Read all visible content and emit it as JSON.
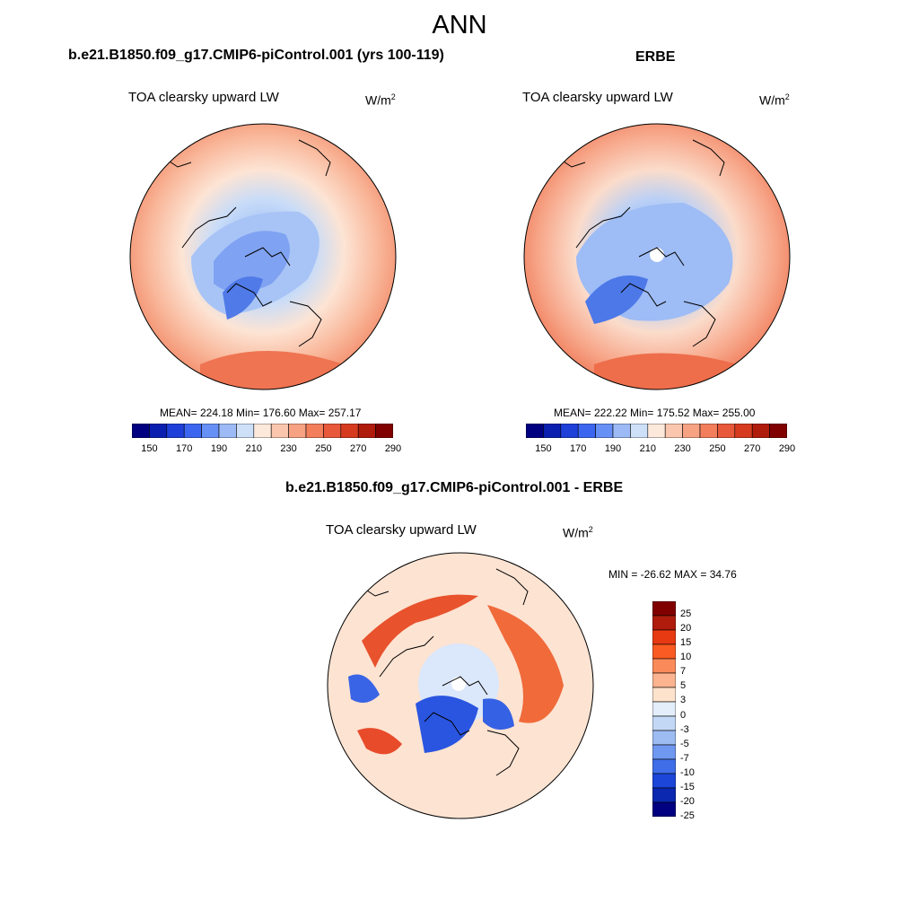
{
  "figure": {
    "title": "ANN",
    "panels": [
      {
        "title": "b.e21.B1850.f09_g17.CMIP6-piControl.001 (yrs 100-119)",
        "left_string": "TOA clearsky upward LW",
        "units": "W/m",
        "units_sup": "2",
        "stats": "MEAN= 224.18  Min= 176.60  Max= 257.17"
      },
      {
        "title": "ERBE",
        "left_string": "TOA clearsky upward LW",
        "units": "W/m",
        "units_sup": "2",
        "stats": "MEAN= 222.22  Min= 175.52  Max= 255.00"
      },
      {
        "title": "b.e21.B1850.f09_g17.CMIP6-piControl.001 - ERBE",
        "left_string": "TOA clearsky upward LW",
        "units": "W/m",
        "units_sup": "2",
        "stats": "MIN = -26.62 MAX =  34.76"
      }
    ]
  },
  "colorbars": {
    "absolute": {
      "colors": [
        "#000080",
        "#0a1fb0",
        "#1e3fd8",
        "#3c66f0",
        "#6690f5",
        "#9cbaf5",
        "#cde0f8",
        "#fde8dc",
        "#fac6ad",
        "#f7a283",
        "#f27e5c",
        "#e8583b",
        "#d63b1f",
        "#b01c0c",
        "#800000"
      ],
      "tick_labels": [
        "150",
        "170",
        "190",
        "210",
        "230",
        "250",
        "270",
        "290"
      ]
    },
    "difference": {
      "colors": [
        "#800000",
        "#b01c0c",
        "#e83a12",
        "#fa5b22",
        "#fb8a5a",
        "#fbb48f",
        "#fde2cc",
        "#e3eefa",
        "#c3d8f5",
        "#9dbcf2",
        "#6f98f0",
        "#3f6ee8",
        "#1b46d8",
        "#0a28b0",
        "#000080"
      ],
      "tick_labels": [
        "25",
        "20",
        "15",
        "10",
        "7",
        "5",
        "3",
        "0",
        "-3",
        "-5",
        "-7",
        "-10",
        "-15",
        "-20",
        "-25"
      ]
    }
  }
}
